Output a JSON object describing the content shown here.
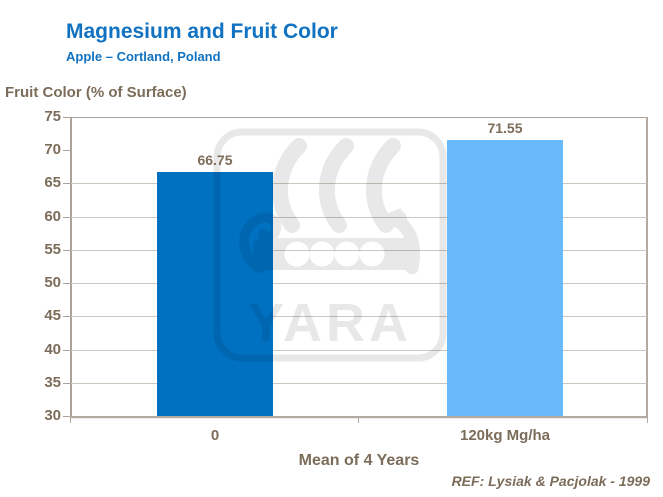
{
  "chart_data": {
    "type": "bar",
    "title": "Magnesium and Fruit Color",
    "subtitle": "Apple – Cortland, Poland",
    "ylabel": "Fruit Color (% of Surface)",
    "xlabel": "Mean of 4 Years",
    "categories": [
      "0",
      "120kg Mg/ha"
    ],
    "values": [
      66.75,
      71.55
    ],
    "value_labels": [
      "66.75",
      "71.55"
    ],
    "ylim": [
      30,
      75
    ],
    "yticks": [
      75,
      70,
      65,
      60,
      55,
      50,
      45,
      40,
      35,
      30
    ],
    "gridline_values": [
      65,
      60,
      55,
      50,
      45,
      40,
      35
    ],
    "grid": "horizontal",
    "legend": "none",
    "bar_colors": [
      "#0071C1",
      "#68BAFB"
    ],
    "reference": "REF: Lysiak & Pacjolak - 1999"
  },
  "watermark": {
    "name": "yara-logo",
    "label": "YARA"
  },
  "colors": {
    "title_blue": "#1172C2",
    "axis_text_brown": "#7C6C5A",
    "bar_dark_blue": "#0071C1",
    "bar_light_blue": "#68BAFB",
    "gridline": "#CDC6BE",
    "plot_border": "#ABA29A"
  }
}
